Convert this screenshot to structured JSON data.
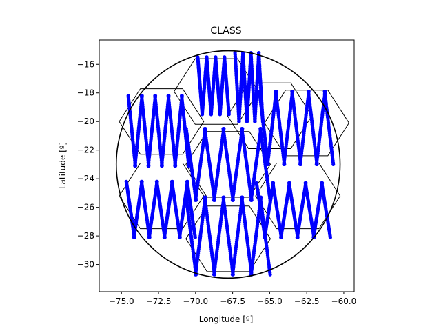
{
  "chart_data": {
    "type": "scatter",
    "title": "CLASS",
    "xlabel": "Longitude [º]",
    "ylabel": "Latitude [º]",
    "xlim": [
      -76.5,
      -59.3
    ],
    "ylim": [
      -31.9,
      -14.3
    ],
    "xticks": [
      -75.0,
      -72.5,
      -70.0,
      -67.5,
      -65.0,
      -62.5,
      -60.0
    ],
    "xtick_labels": [
      "−75.0",
      "−72.5",
      "−70.0",
      "−67.5",
      "−65.0",
      "−62.5",
      "−60.0"
    ],
    "yticks": [
      -16,
      -18,
      -20,
      -22,
      -24,
      -26,
      -28,
      -30
    ],
    "ytick_labels": [
      "−16",
      "−18",
      "−20",
      "−22",
      "−24",
      "−26",
      "−28",
      "−30"
    ],
    "grid": false,
    "legend": "none",
    "footprint_circle": {
      "center": [
        -67.8,
        -23.0
      ],
      "radius_lon": 7.55,
      "radius_lat": 7.95
    },
    "hexagon_centers": [
      [
        -72.3,
        -20.0
      ],
      [
        -65.0,
        -19.6
      ],
      [
        -67.8,
        -23.0
      ],
      [
        -72.3,
        -25.2
      ],
      [
        -63.1,
        -25.2
      ],
      [
        -67.8,
        -28.2
      ],
      [
        -68.6,
        -17.9
      ],
      [
        -62.5,
        -20.1
      ]
    ],
    "hexagon_radius_lon": 2.85,
    "hexagon_radius_lat": 2.65,
    "scan_groups": [
      {
        "x_start": -74.3,
        "x_end": -70.7,
        "y_top": -18.2,
        "y_bottom": -23.1,
        "sweeps": 9
      },
      {
        "x_start": -69.7,
        "x_end": -67.9,
        "y_top": -15.5,
        "y_bottom": -19.5,
        "sweeps": 7
      },
      {
        "x_start": -67.2,
        "x_end": -65.6,
        "y_top": -15.2,
        "y_bottom": -20.0,
        "sweeps": 7
      },
      {
        "x_start": -65.4,
        "x_end": -61.0,
        "y_top": -17.9,
        "y_bottom": -23.0,
        "sweeps": 9
      },
      {
        "x_start": -70.3,
        "x_end": -65.3,
        "y_top": -20.5,
        "y_bottom": -25.5,
        "sweeps": 9
      },
      {
        "x_start": -74.4,
        "x_end": -70.3,
        "y_top": -24.2,
        "y_bottom": -28.1,
        "sweeps": 9
      },
      {
        "x_start": -65.6,
        "x_end": -61.2,
        "y_top": -24.3,
        "y_bottom": -28.1,
        "sweeps": 9
      },
      {
        "x_start": -70.3,
        "x_end": -65.3,
        "y_top": -25.3,
        "y_bottom": -30.7,
        "sweeps": 9
      }
    ],
    "colors": {
      "points": "#0000ff",
      "circle": "#000000",
      "hexagons": "#000000"
    }
  }
}
